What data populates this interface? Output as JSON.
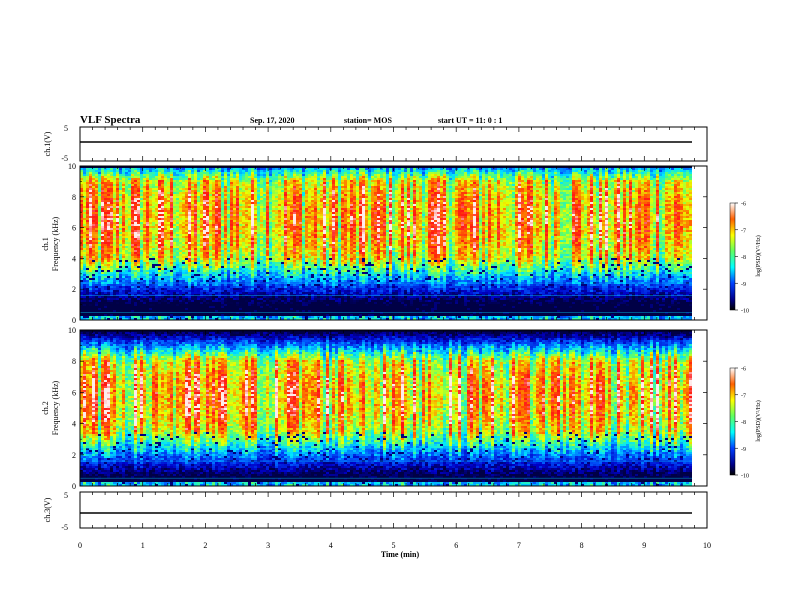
{
  "header": {
    "title": "VLF Spectra",
    "date": "Sep. 17, 2020",
    "station": "station= MOS",
    "start_ut": "start UT =  11: 0  : 1"
  },
  "chart_data": [
    {
      "type": "line",
      "panel": "ch1-waveform",
      "ylabel": "ch.1(V)",
      "ylim": [
        -5,
        5
      ],
      "yticks": [
        "5",
        "-5"
      ],
      "series": [
        {
          "x": [
            0,
            9.85
          ],
          "values": [
            -0.4,
            -0.4
          ]
        }
      ]
    },
    {
      "type": "heatmap",
      "panel": "ch1-spectrogram",
      "ylabel_line1": "ch.1",
      "ylabel_line2": "Frequency (kHz)",
      "ylim": [
        0,
        10
      ],
      "yticks": [
        "0",
        "2",
        "4",
        "6",
        "8",
        "10"
      ],
      "xlim": [
        0,
        9.85
      ],
      "intense_band_khz": [
        4,
        9
      ],
      "colorbar": {
        "label": "log(PSD)(V²/Hz)",
        "min": -10,
        "max": -6,
        "ticks": [
          "-6",
          "-7",
          "-8",
          "-9",
          "-10"
        ]
      }
    },
    {
      "type": "heatmap",
      "panel": "ch2-spectrogram",
      "ylabel_line1": "ch.2",
      "ylabel_line2": "Frequency (kHz)",
      "ylim": [
        0,
        10
      ],
      "yticks": [
        "0",
        "2",
        "4",
        "6",
        "8",
        "10"
      ],
      "xlim": [
        0,
        9.85
      ],
      "intense_band_khz": [
        3.5,
        8
      ],
      "colorbar": {
        "label": "log(PSD)(V²/Hz)",
        "min": -10,
        "max": -6,
        "ticks": [
          "-6",
          "-7",
          "-8",
          "-9",
          "-10"
        ]
      }
    },
    {
      "type": "line",
      "panel": "ch3-waveform",
      "ylabel": "ch.3(V)",
      "ylim": [
        -5,
        5
      ],
      "yticks": [
        "5",
        "-5"
      ],
      "series": [
        {
          "x": [
            0,
            9.85
          ],
          "values": [
            -1.8,
            -1.8
          ]
        }
      ]
    }
  ],
  "xaxis": {
    "label": "Time (min)",
    "range": [
      0,
      10
    ],
    "ticks": [
      "0",
      "1",
      "2",
      "3",
      "4",
      "5",
      "6",
      "7",
      "8",
      "9",
      "10"
    ]
  },
  "colors": {
    "jet": [
      "#000080",
      "#0000ff",
      "#0080ff",
      "#00ffff",
      "#80ff80",
      "#ffff00",
      "#ff8000",
      "#ff0000"
    ],
    "low": "#00003a"
  }
}
